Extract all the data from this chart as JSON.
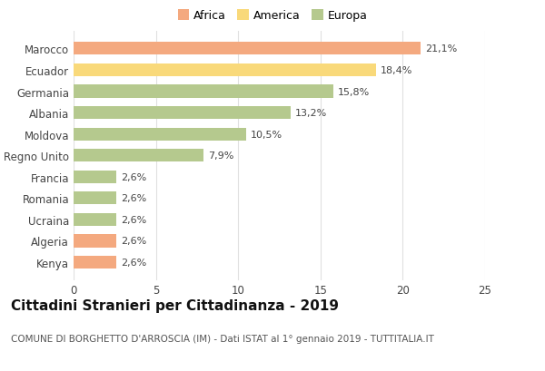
{
  "countries": [
    "Kenya",
    "Algeria",
    "Ucraina",
    "Romania",
    "Francia",
    "Regno Unito",
    "Moldova",
    "Albania",
    "Germania",
    "Ecuador",
    "Marocco"
  ],
  "values": [
    2.6,
    2.6,
    2.6,
    2.6,
    2.6,
    7.9,
    10.5,
    13.2,
    15.8,
    18.4,
    21.1
  ],
  "labels": [
    "2,6%",
    "2,6%",
    "2,6%",
    "2,6%",
    "2,6%",
    "7,9%",
    "10,5%",
    "13,2%",
    "15,8%",
    "18,4%",
    "21,1%"
  ],
  "continents": [
    "Africa",
    "Africa",
    "Europa",
    "Europa",
    "Europa",
    "Europa",
    "Europa",
    "Europa",
    "Europa",
    "America",
    "Africa"
  ],
  "colors": {
    "Africa": "#F4A97F",
    "America": "#F9D97A",
    "Europa": "#B5C98E"
  },
  "title": "Cittadini Stranieri per Cittadinanza - 2019",
  "subtitle": "COMUNE DI BORGHETTO D'ARROSCIA (IM) - Dati ISTAT al 1° gennaio 2019 - TUTTITALIA.IT",
  "xlim": [
    0,
    25
  ],
  "xticks": [
    0,
    5,
    10,
    15,
    20,
    25
  ],
  "background_color": "#ffffff",
  "grid_color": "#e0e0e0",
  "bar_height": 0.6,
  "title_fontsize": 11,
  "subtitle_fontsize": 7.5,
  "label_fontsize": 8,
  "tick_fontsize": 8.5,
  "legend_fontsize": 9
}
